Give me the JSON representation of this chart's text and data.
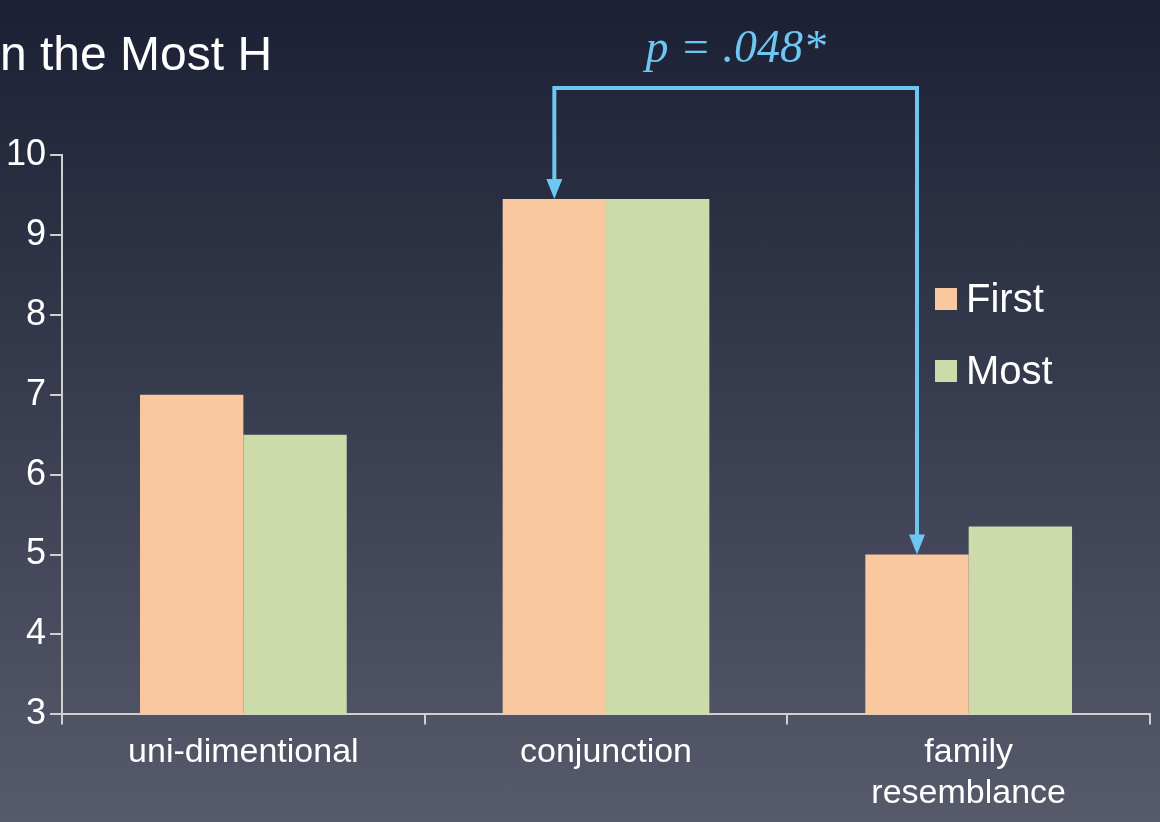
{
  "chart_data": {
    "type": "bar",
    "title": "n the Most H",
    "categories": [
      "uni-dimentional",
      "conjunction",
      "family resemblance"
    ],
    "series": [
      {
        "name": "First",
        "color": "#f9c89f",
        "values": [
          7,
          9.45,
          5
        ]
      },
      {
        "name": "Most",
        "color": "#ccdba9",
        "values": [
          6.5,
          9.45,
          5.35
        ]
      }
    ],
    "ylim": [
      3,
      10
    ],
    "yticks": [
      3,
      4,
      5,
      6,
      7,
      8,
      9,
      10
    ],
    "grid": false,
    "legend": "right",
    "annotations": [
      "p = .048*"
    ]
  }
}
